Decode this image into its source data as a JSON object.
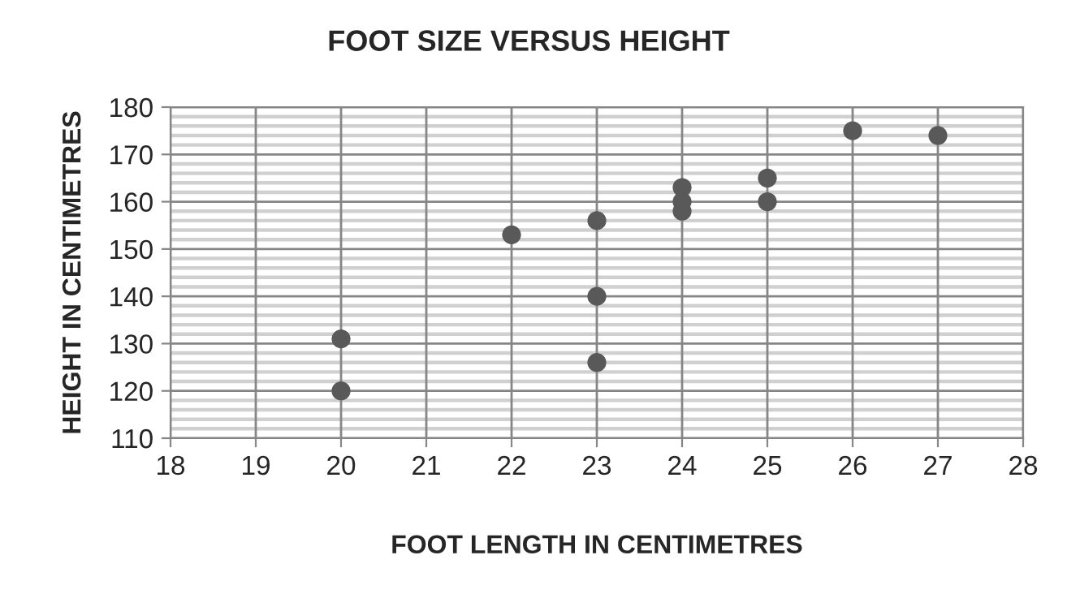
{
  "chart_data": {
    "type": "scatter",
    "title": "FOOT SIZE VERSUS HEIGHT",
    "xlabel": "FOOT LENGTH IN CENTIMETRES",
    "ylabel": "HEIGHT IN CENTIMETRES",
    "x": [
      20,
      20,
      22,
      23,
      23,
      23,
      24,
      24,
      24,
      25,
      25,
      26,
      27
    ],
    "series": [
      {
        "color": "#595959",
        "values": [
          131,
          120,
          153,
          156,
          140,
          126,
          163,
          160,
          158,
          165,
          160,
          175,
          174
        ]
      }
    ],
    "marker": "circle",
    "grid": true,
    "xlim": [
      18,
      28
    ],
    "xticks": [
      18,
      19,
      20,
      21,
      22,
      23,
      24,
      25,
      26,
      27,
      28
    ],
    "ylim": [
      110,
      180
    ],
    "yticks": [
      110,
      {
        "value": 112,
        "label": null
      },
      {
        "value": 114,
        "label": null
      },
      {
        "value": 116,
        "label": null
      },
      {
        "value": 118,
        "label": null
      },
      120,
      {
        "value": 122,
        "label": null
      },
      {
        "value": 124,
        "label": null
      },
      {
        "value": 126,
        "label": null
      },
      {
        "value": 128,
        "label": null
      },
      130,
      {
        "value": 132,
        "label": null
      },
      {
        "value": 134,
        "label": null
      },
      {
        "value": 136,
        "label": null
      },
      {
        "value": 138,
        "label": null
      },
      140,
      {
        "value": 142,
        "label": null
      },
      {
        "value": 144,
        "label": null
      },
      {
        "value": 146,
        "label": null
      },
      {
        "value": 148,
        "label": null
      },
      150,
      {
        "value": 152,
        "label": null
      },
      {
        "value": 154,
        "label": null
      },
      {
        "value": 156,
        "label": null
      },
      {
        "value": 158,
        "label": null
      },
      160,
      {
        "value": 162,
        "label": null
      },
      {
        "value": 164,
        "label": null
      },
      {
        "value": 166,
        "label": null
      },
      {
        "value": 168,
        "label": null
      },
      170,
      {
        "value": 172,
        "label": null
      },
      {
        "value": 174,
        "label": null
      },
      {
        "value": 176,
        "label": null
      },
      {
        "value": 178,
        "label": null
      },
      180
    ]
  }
}
